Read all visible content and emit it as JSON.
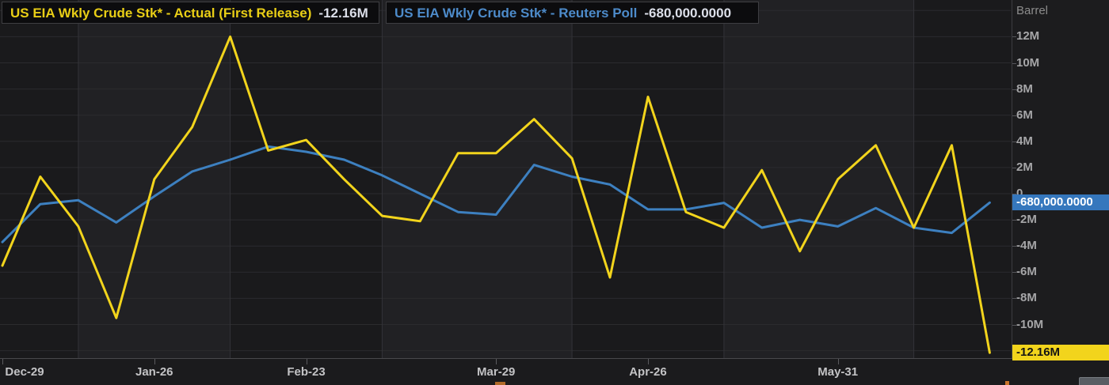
{
  "legend": {
    "actual": {
      "label": "US EIA Wkly Crude Stk* - Actual (First Release)",
      "value": "-12.16M",
      "label_color": "#e9ce16"
    },
    "poll": {
      "label": "US EIA Wkly Crude Stk* - Reuters Poll",
      "value": "-680,000.0000",
      "label_color": "#4d8bca"
    }
  },
  "colors": {
    "actual_line": "#f2d41c",
    "poll_line": "#3d80c0",
    "poll_value_box": "#3577bd",
    "actual_value_box": "#f2d41c"
  },
  "chart_data": {
    "type": "line",
    "ylabel": "Barrel",
    "x": [
      "Dec-29",
      "Jan-05",
      "Jan-12",
      "Jan-19",
      "Jan-26",
      "Feb-02",
      "Feb-09",
      "Feb-16",
      "Feb-23",
      "Mar-01",
      "Mar-08",
      "Mar-15",
      "Mar-22",
      "Mar-29",
      "Apr-05",
      "Apr-12",
      "Apr-19",
      "Apr-26",
      "May-03",
      "May-10",
      "May-17",
      "May-24",
      "May-31",
      "Jun-07",
      "Jun-14",
      "Jun-21",
      "Jun-28"
    ],
    "series": [
      {
        "name": "US EIA Wkly Crude Stk* - Reuters Poll",
        "color": "#3d80c0",
        "values_millions": [
          -3.7,
          -0.8,
          -0.5,
          -2.2,
          -0.2,
          1.7,
          2.6,
          3.6,
          3.2,
          2.6,
          1.4,
          0.0,
          -1.4,
          -1.6,
          2.2,
          1.3,
          0.7,
          -1.2,
          -1.2,
          -0.7,
          -2.6,
          -2.0,
          -2.5,
          -1.1,
          -2.6,
          -3.0,
          -0.68
        ]
      },
      {
        "name": "US EIA Wkly Crude Stk* - Actual (First Release)",
        "color": "#f2d41c",
        "values_millions": [
          -5.5,
          1.3,
          -2.5,
          -9.5,
          1.1,
          5.1,
          12.0,
          3.3,
          4.1,
          1.1,
          -1.7,
          -2.1,
          3.1,
          3.1,
          5.7,
          2.7,
          -6.4,
          7.4,
          -1.4,
          -2.6,
          1.8,
          -4.4,
          1.1,
          3.7,
          -2.6,
          3.7,
          -12.16
        ]
      }
    ],
    "ylim_millions": [
      -12.7,
      13.6
    ],
    "y_ticks_millions": [
      12,
      10,
      8,
      6,
      4,
      2,
      0,
      -2,
      -4,
      -6,
      -8,
      -10
    ],
    "y_tick_labels": [
      "12M",
      "10M",
      "8M",
      "6M",
      "4M",
      "2M",
      "0",
      "-2M",
      "-4M",
      "-6M",
      "-8M",
      "-10M"
    ],
    "y_gridlines_millions": [
      14,
      12,
      10,
      8,
      6,
      4,
      2,
      0,
      -2,
      -4,
      -6,
      -8,
      -10,
      -12
    ],
    "x_tick_labels": [
      "Dec-29",
      "Jan-26",
      "Feb-23",
      "Mar-29",
      "Apr-26",
      "May-31"
    ],
    "x_tick_indices": [
      0,
      4,
      8,
      13,
      17,
      22
    ],
    "x_gridline_indices": [
      2,
      6,
      10,
      15,
      19,
      24
    ],
    "last_value_labels": {
      "actual": "-12.16M",
      "poll": "-680,000.0000"
    },
    "last_values_millions": {
      "actual": -12.16,
      "poll": -0.68
    },
    "legend_position": "top-left",
    "grid": true
  }
}
